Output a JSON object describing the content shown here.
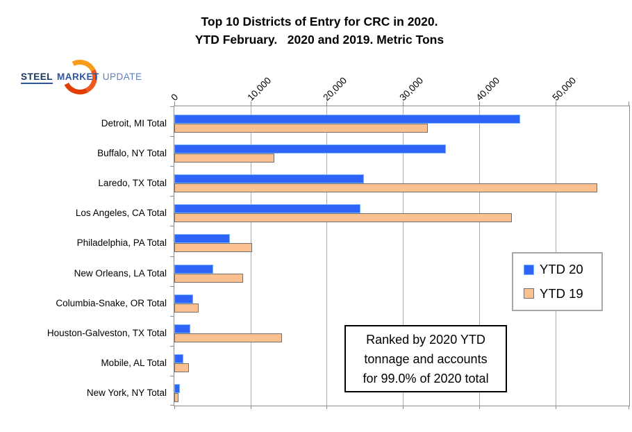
{
  "title": {
    "line1": "Top 10 Districts of Entry for CRC in 2020.",
    "line2": "YTD February.   2020 and 2019. Metric Tons"
  },
  "logo": {
    "word1": "STEEL",
    "word2": "MARKET",
    "word3": "UPDATE"
  },
  "annotation": {
    "lines": [
      "Ranked by 2020 YTD",
      "tonnage and accounts",
      "for 99.0% of 2020 total"
    ]
  },
  "chart_data": {
    "type": "bar",
    "orientation": "horizontal",
    "title": "Top 10 Districts of Entry for CRC in 2020. YTD February. 2020 and 2019. Metric Tons",
    "units": "Metric Tons",
    "categories": [
      "Detroit, MI Total",
      "Buffalo, NY Total",
      "Laredo, TX Total",
      "Los Angeles, CA Total",
      "Philadelphia, PA Total",
      "New Orleans, LA Total",
      "Columbia-Snake, OR Total",
      "Houston-Galveston, TX Total",
      "Mobile, AL Total",
      "New York, NY Total"
    ],
    "series": [
      {
        "name": "YTD 20",
        "color": "#2E64FA",
        "border_color": "#76B4FE",
        "values": [
          45400,
          35600,
          24900,
          24400,
          7300,
          5100,
          2500,
          2100,
          1200,
          700
        ]
      },
      {
        "name": "YTD 19",
        "color": "#FAC090",
        "border_color": "#707070",
        "values": [
          33300,
          13100,
          55500,
          44300,
          10200,
          9000,
          3200,
          14100,
          1900,
          550
        ]
      }
    ],
    "xlim": [
      0,
      59700
    ],
    "xticks": [
      0,
      10000,
      20000,
      30000,
      40000,
      50000
    ],
    "xtick_labels": [
      "0",
      "10,000",
      "20,000",
      "30,000",
      "40,000",
      "50,000"
    ],
    "grid": true,
    "gridline_color": "#ABABAB",
    "legend_position": "middle-right"
  }
}
